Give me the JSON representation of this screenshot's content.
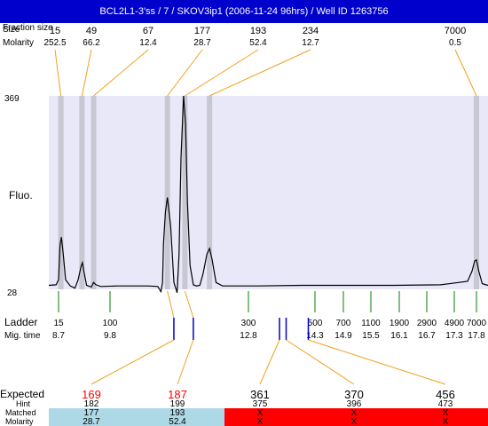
{
  "header": {
    "title": "BCL2L1-3'ss / 7 / SKOV3ip1 (2006-11-24 96hrs) / Well ID 1263756"
  },
  "labels": {
    "fraction_size_label": "Fraction size",
    "size_label": "Size",
    "molarity_label": "Molarity",
    "fluo_label": "Fluo.",
    "ymax": "369",
    "ymin": "28",
    "ladder_label": "Ladder",
    "migtime_label": "Mig. time",
    "expected_label": "Expected",
    "hint_label": "Hint",
    "matched_label": "Matched",
    "molarity_bottom_label": "Molarity"
  },
  "colors": {
    "header_bg": "#0000cc",
    "plot_bg": "#e8e8f8",
    "peak_band": "#c8c8d4",
    "connector": "#f0a020",
    "ladder_tick": "#008000",
    "marker": "#0000cc",
    "expected_red": "#ff0000",
    "matched_bg": "#add8e6",
    "unmatched_bg": "#ff0000"
  },
  "chart_data": {
    "type": "line",
    "title": "BCL2L1-3'ss / 7 / SKOV3ip1 (2006-11-24 96hrs) / Well ID 1263756",
    "ylabel": "Fluo.",
    "ylim": [
      28,
      369
    ],
    "yticks": [
      "369",
      "28"
    ],
    "peaks": [
      {
        "size": "15",
        "molarity": "252.5",
        "time": 8.75
      },
      {
        "size": "49",
        "molarity": "66.2",
        "time": 9.2
      },
      {
        "size": "67",
        "molarity": "12.4",
        "time": 9.45
      },
      {
        "size": "177",
        "molarity": "28.7",
        "time": 11.55
      },
      {
        "size": "193",
        "molarity": "52.4",
        "time": 11.82
      },
      {
        "size": "234",
        "molarity": "12.7",
        "time": 12.2
      },
      {
        "size": "7000",
        "molarity": "0.5",
        "time": 17.8
      }
    ],
    "ladder": [
      {
        "size": "15",
        "time": "8.7"
      },
      {
        "size": "100",
        "time": "9.8"
      },
      {
        "size": "300",
        "time": "12.8"
      },
      {
        "size": "500",
        "time": "14.3"
      },
      {
        "size": "700",
        "time": "14.9"
      },
      {
        "size": "1100",
        "time": "15.5"
      },
      {
        "size": "1900",
        "time": "16.1"
      },
      {
        "size": "2900",
        "time": "16.7"
      },
      {
        "size": "4900",
        "time": "17.3"
      },
      {
        "size": "7000",
        "time": "17.8"
      }
    ],
    "trace": {
      "time": [
        8.3,
        8.6,
        8.7,
        8.73,
        8.76,
        8.8,
        8.85,
        8.95,
        9.05,
        9.12,
        9.18,
        9.21,
        9.24,
        9.3,
        9.4,
        9.45,
        9.5,
        9.6,
        10.0,
        10.5,
        11.0,
        11.3,
        11.4,
        11.45,
        11.48,
        11.52,
        11.55,
        11.6,
        11.65,
        11.7,
        11.73,
        11.76,
        11.8,
        11.83,
        11.86,
        11.9,
        11.95,
        12.0,
        12.05,
        12.1,
        12.16,
        12.2,
        12.24,
        12.3,
        12.4,
        13.0,
        14.0,
        15.0,
        16.0,
        17.0,
        17.6,
        17.7,
        17.76,
        17.8,
        17.84,
        17.9,
        18.0
      ],
      "fluo": [
        35,
        36,
        45,
        105,
        120,
        90,
        45,
        34,
        30,
        45,
        68,
        75,
        60,
        35,
        32,
        40,
        36,
        33,
        34,
        34,
        34,
        33,
        24,
        40,
        110,
        165,
        190,
        140,
        40,
        20,
        90,
        260,
        369,
        320,
        180,
        70,
        36,
        34,
        35,
        55,
        90,
        100,
        80,
        40,
        34,
        34,
        35,
        35,
        35,
        36,
        42,
        60,
        78,
        80,
        60,
        38,
        35
      ]
    }
  },
  "matching": {
    "expected": [
      "169",
      "187",
      "361",
      "370",
      "456"
    ],
    "expected_highlight": [
      true,
      true,
      false,
      false,
      false
    ],
    "hint": [
      "182",
      "199",
      "375",
      "396",
      "473"
    ],
    "matched": [
      "177",
      "193",
      "X",
      "X",
      "X"
    ],
    "molarity": [
      "28.7",
      "52.4",
      "X",
      "X",
      "X"
    ],
    "matched_flag": [
      true,
      true,
      false,
      false,
      false
    ],
    "marker_time": [
      11.65,
      11.95,
      13.5,
      13.65,
      14.15
    ]
  }
}
